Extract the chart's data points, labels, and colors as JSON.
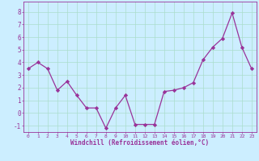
{
  "x": [
    0,
    1,
    2,
    3,
    4,
    5,
    6,
    7,
    8,
    9,
    10,
    11,
    12,
    13,
    14,
    15,
    16,
    17,
    18,
    19,
    20,
    21,
    22,
    23
  ],
  "y": [
    3.5,
    4.0,
    3.5,
    1.8,
    2.5,
    1.4,
    0.4,
    0.4,
    -1.2,
    0.4,
    1.4,
    -0.9,
    -0.9,
    -0.9,
    1.7,
    1.8,
    2.0,
    2.4,
    4.2,
    5.2,
    5.9,
    7.9,
    5.2,
    3.5
  ],
  "line_color": "#993399",
  "marker": "D",
  "marker_size": 2.2,
  "bg_color": "#cceeff",
  "grid_color": "#aaddcc",
  "xlabel": "Windchill (Refroidissement éolien,°C)",
  "ylim": [
    -1.5,
    8.8
  ],
  "xlim": [
    -0.5,
    23.5
  ],
  "yticks": [
    -1,
    0,
    1,
    2,
    3,
    4,
    5,
    6,
    7,
    8
  ],
  "xticks": [
    0,
    1,
    2,
    3,
    4,
    5,
    6,
    7,
    8,
    9,
    10,
    11,
    12,
    13,
    14,
    15,
    16,
    17,
    18,
    19,
    20,
    21,
    22,
    23
  ],
  "tick_color": "#993399",
  "label_color": "#993399",
  "xlabel_fontsize": 5.5,
  "xtick_fontsize": 4.5,
  "ytick_fontsize": 5.5
}
